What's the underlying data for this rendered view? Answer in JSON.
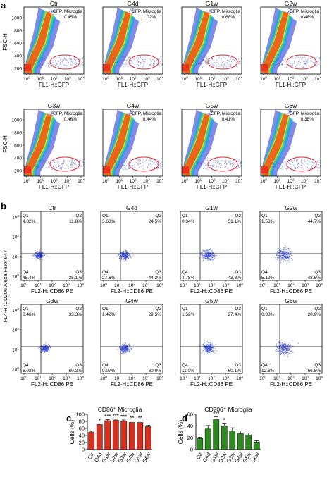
{
  "panel_a": {
    "label": "a",
    "ylabel": "FSC-H",
    "xlabel": "FL1-H::GFP",
    "gate_label": "GFP, Microglia",
    "y_ticks": [
      "200",
      "400",
      "600",
      "800",
      "1000"
    ],
    "x_ticks": [
      "10",
      "10",
      "10",
      "10",
      "10"
    ],
    "x_tick_exponents": [
      "0",
      "1",
      "2",
      "3",
      "4"
    ],
    "plots": [
      {
        "title": "Ctr",
        "value": "0.45%"
      },
      {
        "title": "G4d",
        "value": "1.02%"
      },
      {
        "title": "G1w",
        "value": "0.68%"
      },
      {
        "title": "G2w",
        "value": "0.48%"
      },
      {
        "title": "G3w",
        "value": "0.46%"
      },
      {
        "title": "G4w",
        "value": "0.44%"
      },
      {
        "title": "G5w",
        "value": "0.41%"
      },
      {
        "title": "G6w",
        "value": "0.38%"
      }
    ]
  },
  "panel_b": {
    "label": "b",
    "ylabel": "FL4-H::CD206 Alexa Fluor 647",
    "xlabel": "FL2-H::CD86 PE",
    "y_ticks": [
      "10",
      "10",
      "10",
      "10"
    ],
    "y_tick_exponents": [
      "0",
      "1",
      "2",
      "3"
    ],
    "x_ticks": [
      "10",
      "10",
      "10",
      "10",
      "10"
    ],
    "x_tick_exponents": [
      "0",
      "1",
      "2",
      "3",
      "4"
    ],
    "quadrant_names": [
      "Q1",
      "Q2",
      "Q3",
      "Q4"
    ],
    "plots": [
      {
        "title": "Ctr",
        "q1": "4.82%",
        "q2": "11.8%",
        "q3": "35.1%",
        "q4": "48.4%"
      },
      {
        "title": "G4d",
        "q1": "3.68%",
        "q2": "24.5%",
        "q3": "44.2%",
        "q4": "27.6%"
      },
      {
        "title": "G1w",
        "q1": "0.34%",
        "q2": "51.1%",
        "q3": "43.8%",
        "q4": "4.75%"
      },
      {
        "title": "G2w",
        "q1": "1.53%",
        "q2": "44.7%",
        "q3": "48.5%",
        "q4": "5.19%"
      },
      {
        "title": "G3w",
        "q1": "0.48%",
        "q2": "33.3%",
        "q3": "60.2%",
        "q4": "6.02%"
      },
      {
        "title": "G4w",
        "q1": "1.42%",
        "q2": "29.5%",
        "q3": "60.0%",
        "q4": "9.07%"
      },
      {
        "title": "G5w",
        "q1": "1.52%",
        "q2": "27.4%",
        "q3": "60.1%",
        "q4": "11.0%"
      },
      {
        "title": "G6w",
        "q1": "0.38%",
        "q2": "20.9%",
        "q3": "66.8%",
        "q4": "12.8%"
      }
    ]
  },
  "chart_data": [
    {
      "type": "bar",
      "panel": "c",
      "title": "CD86⁺ Microglia",
      "ylabel": "Cells (%)",
      "xlabel": "",
      "ylim": [
        0,
        100
      ],
      "yticks": [
        "0",
        "20",
        "40",
        "60",
        "80",
        "100"
      ],
      "categories": [
        "Ctr",
        "G4d",
        "G1w",
        "G2w",
        "G3w",
        "G4w",
        "G5w",
        "G6w"
      ],
      "values": [
        49,
        71,
        82,
        83,
        81,
        77,
        77,
        65
      ],
      "errors": [
        3,
        2,
        3,
        3,
        3,
        4,
        4,
        4
      ],
      "significance": [
        "",
        "*",
        "***",
        "***",
        "***",
        "**",
        "**",
        ""
      ],
      "color": "#d7301f"
    },
    {
      "type": "bar",
      "panel": "d",
      "title": "CD206⁺ Microglia",
      "ylabel": "Cells (%)",
      "xlabel": "",
      "ylim": [
        0,
        60
      ],
      "yticks": [
        "0",
        "20",
        "40",
        "60"
      ],
      "categories": [
        "Ctr",
        "G4d",
        "G1w",
        "G2w",
        "G3w",
        "G4w",
        "G5w",
        "G6w"
      ],
      "values": [
        19,
        35,
        51,
        40,
        32,
        27,
        25,
        13
      ],
      "errors": [
        2,
        6,
        5,
        5,
        5,
        5,
        3,
        2
      ],
      "significance": [
        "",
        "",
        "***",
        "*",
        "",
        "",
        "",
        ""
      ],
      "color": "#2e8b1f"
    }
  ]
}
